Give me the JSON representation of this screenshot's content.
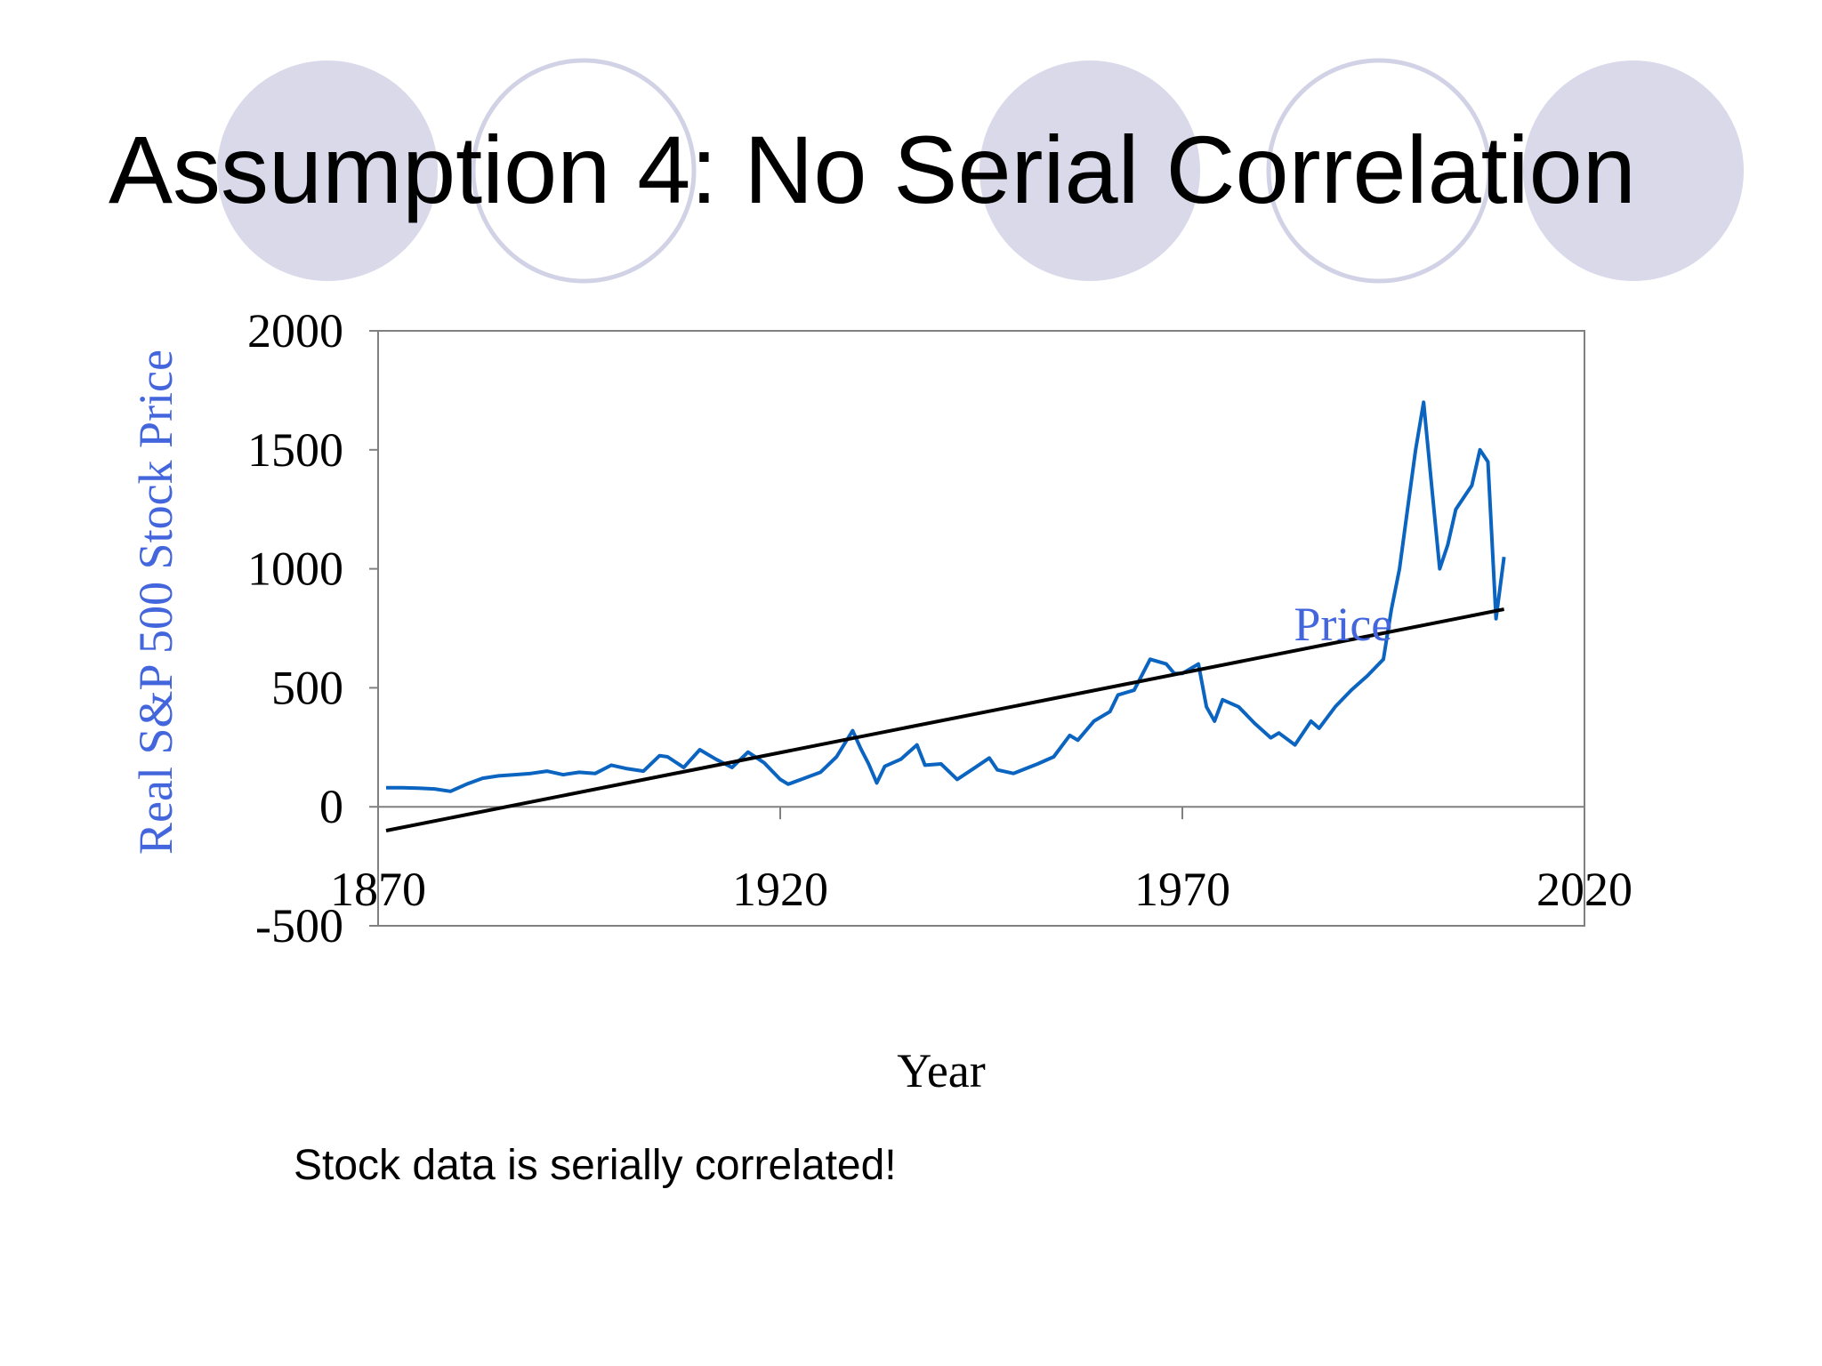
{
  "slide": {
    "title": "Assumption 4: No Serial Correlation",
    "caption": "Stock data is serially correlated!",
    "decor_fill": "#d9d9ea",
    "decor_stroke": "#d2d2e6"
  },
  "chart_data": {
    "type": "line",
    "xlabel": "Year",
    "ylabel": "Real S&P 500 Stock Price",
    "xlim": [
      1870,
      2020
    ],
    "ylim": [
      -500,
      2000
    ],
    "xticks": [
      1870,
      1920,
      1970,
      2020
    ],
    "yticks": [
      -500,
      0,
      500,
      1000,
      1500,
      2000
    ],
    "grid": false,
    "colors": {
      "series": "#0b64c0",
      "trend": "#000000",
      "label": "#4466dd",
      "ylabel": "#4466dd"
    },
    "series": [
      {
        "name": "Price",
        "x": [
          1871,
          1873,
          1875,
          1877,
          1879,
          1881,
          1883,
          1885,
          1887,
          1889,
          1891,
          1893,
          1895,
          1897,
          1899,
          1901,
          1903,
          1905,
          1906,
          1908,
          1910,
          1912,
          1914,
          1916,
          1918,
          1920,
          1921,
          1923,
          1925,
          1927,
          1929,
          1930,
          1931,
          1932,
          1933,
          1935,
          1937,
          1938,
          1940,
          1942,
          1944,
          1946,
          1947,
          1949,
          1952,
          1954,
          1956,
          1957,
          1959,
          1961,
          1962,
          1964,
          1966,
          1968,
          1969,
          1970,
          1972,
          1973,
          1974,
          1975,
          1977,
          1979,
          1981,
          1982,
          1984,
          1986,
          1987,
          1989,
          1991,
          1993,
          1995,
          1996,
          1997,
          1998,
          1999,
          2000,
          2001,
          2002,
          2003,
          2004,
          2005,
          2006,
          2007,
          2008,
          2009,
          2010
        ],
        "y": [
          80,
          80,
          78,
          75,
          65,
          95,
          120,
          130,
          135,
          140,
          150,
          135,
          145,
          140,
          175,
          160,
          150,
          215,
          210,
          165,
          240,
          200,
          165,
          230,
          185,
          115,
          95,
          120,
          145,
          210,
          320,
          245,
          180,
          100,
          170,
          200,
          260,
          175,
          180,
          115,
          160,
          205,
          155,
          140,
          180,
          210,
          300,
          280,
          360,
          400,
          470,
          490,
          620,
          600,
          560,
          560,
          600,
          420,
          360,
          450,
          420,
          350,
          290,
          310,
          260,
          360,
          330,
          420,
          490,
          550,
          620,
          830,
          1000,
          1250,
          1500,
          1700,
          1350,
          1000,
          1100,
          1250,
          1300,
          1350,
          1500,
          1450,
          790,
          1050
        ]
      },
      {
        "name": "",
        "x": [
          1871,
          2010
        ],
        "y": [
          -100,
          830
        ]
      }
    ],
    "annotations": [
      {
        "text": "Price",
        "x": 1990,
        "y": 700
      }
    ]
  }
}
